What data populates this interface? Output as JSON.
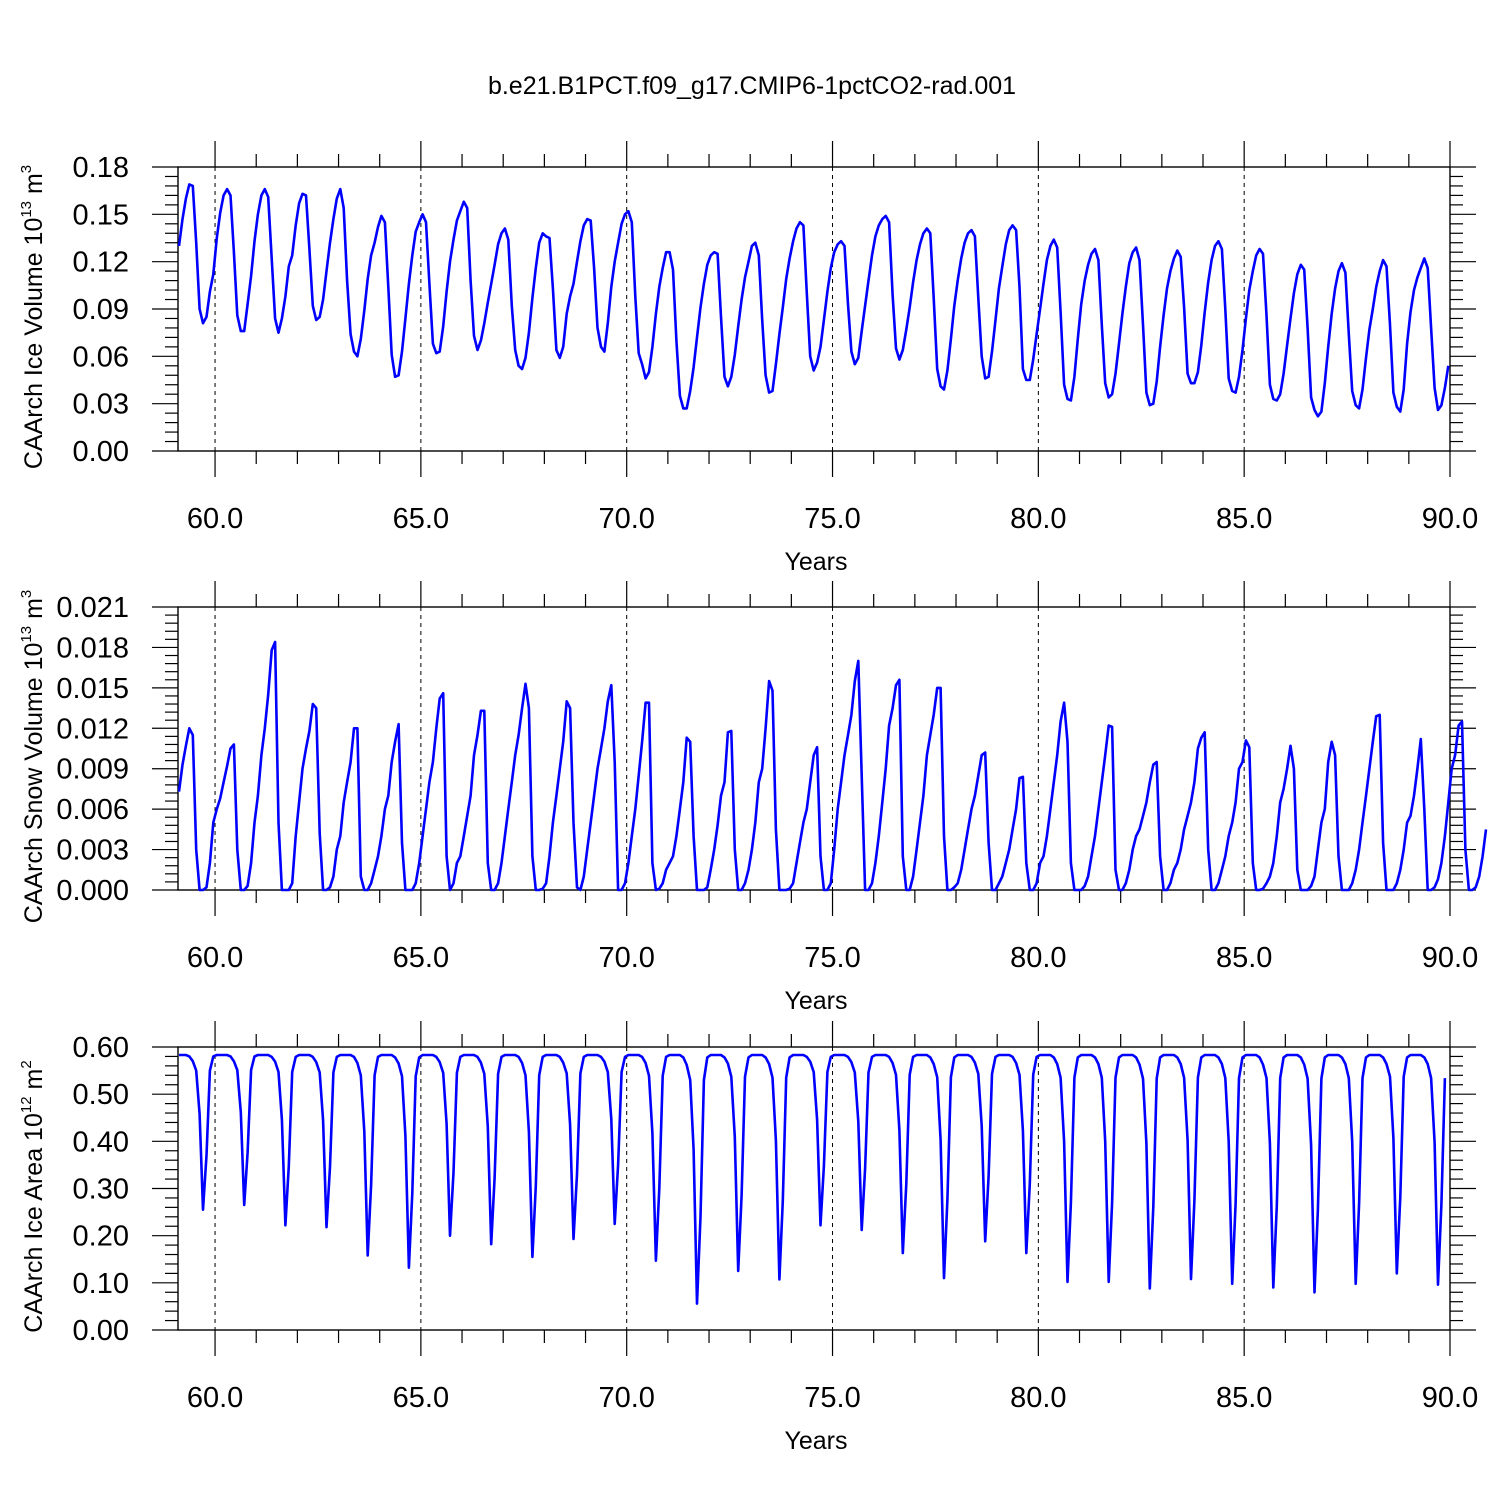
{
  "title": "b.e21.B1PCT.f09_g17.CMIP6-1pctCO2-rad.001",
  "colors": {
    "series": "#0000ff",
    "axes": "#000000"
  },
  "chart_data": [
    {
      "type": "line",
      "xlabel": "Years",
      "ylabel": {
        "main": "CAArch Ice Volume 10",
        "exp": "13",
        "unit": " m",
        "unit_exp": "3"
      },
      "xlim": [
        59.1,
        90.0
      ],
      "ylim": [
        0.0,
        0.18
      ],
      "xticks": [
        60,
        65,
        70,
        75,
        80,
        85,
        90
      ],
      "xtick_labels": [
        "60.0",
        "65.0",
        "70.0",
        "75.0",
        "80.0",
        "85.0",
        "90.0"
      ],
      "yticks": [
        0.0,
        0.03,
        0.06,
        0.09,
        0.12,
        0.15,
        0.18
      ],
      "ytick_labels": [
        "0.00",
        "0.03",
        "0.06",
        "0.09",
        "0.12",
        "0.15",
        "0.18"
      ],
      "grid": "vertical dashed at major x ticks",
      "x_start": 59.125,
      "x_step": 0.0833333,
      "values": [
        0.13,
        0.147,
        0.16,
        0.169,
        0.168,
        0.132,
        0.09,
        0.081,
        0.085,
        0.101,
        0.112,
        0.135,
        0.151,
        0.162,
        0.166,
        0.162,
        0.126,
        0.086,
        0.076,
        0.076,
        0.093,
        0.111,
        0.133,
        0.15,
        0.162,
        0.166,
        0.161,
        0.122,
        0.084,
        0.075,
        0.084,
        0.098,
        0.117,
        0.124,
        0.143,
        0.157,
        0.163,
        0.162,
        0.128,
        0.092,
        0.083,
        0.085,
        0.096,
        0.114,
        0.132,
        0.147,
        0.16,
        0.166,
        0.154,
        0.108,
        0.074,
        0.063,
        0.06,
        0.071,
        0.089,
        0.109,
        0.124,
        0.132,
        0.142,
        0.149,
        0.145,
        0.104,
        0.061,
        0.047,
        0.048,
        0.063,
        0.084,
        0.106,
        0.124,
        0.139,
        0.145,
        0.15,
        0.145,
        0.106,
        0.068,
        0.062,
        0.063,
        0.079,
        0.101,
        0.12,
        0.134,
        0.146,
        0.152,
        0.158,
        0.154,
        0.108,
        0.073,
        0.064,
        0.07,
        0.081,
        0.094,
        0.106,
        0.118,
        0.131,
        0.138,
        0.141,
        0.134,
        0.092,
        0.064,
        0.054,
        0.052,
        0.059,
        0.075,
        0.097,
        0.116,
        0.132,
        0.138,
        0.136,
        0.135,
        0.103,
        0.064,
        0.059,
        0.066,
        0.087,
        0.098,
        0.106,
        0.12,
        0.133,
        0.143,
        0.147,
        0.146,
        0.116,
        0.078,
        0.066,
        0.063,
        0.081,
        0.104,
        0.12,
        0.132,
        0.144,
        0.15,
        0.152,
        0.145,
        0.098,
        0.062,
        0.055,
        0.046,
        0.05,
        0.066,
        0.087,
        0.104,
        0.116,
        0.126,
        0.126,
        0.115,
        0.07,
        0.035,
        0.027,
        0.027,
        0.038,
        0.053,
        0.072,
        0.091,
        0.106,
        0.118,
        0.124,
        0.126,
        0.125,
        0.085,
        0.047,
        0.041,
        0.047,
        0.061,
        0.079,
        0.096,
        0.11,
        0.12,
        0.13,
        0.132,
        0.124,
        0.083,
        0.048,
        0.037,
        0.038,
        0.055,
        0.074,
        0.091,
        0.109,
        0.122,
        0.133,
        0.141,
        0.145,
        0.143,
        0.1,
        0.06,
        0.051,
        0.056,
        0.066,
        0.083,
        0.101,
        0.116,
        0.126,
        0.131,
        0.133,
        0.13,
        0.093,
        0.063,
        0.055,
        0.059,
        0.076,
        0.092,
        0.108,
        0.124,
        0.136,
        0.143,
        0.147,
        0.149,
        0.145,
        0.099,
        0.065,
        0.058,
        0.064,
        0.077,
        0.091,
        0.107,
        0.121,
        0.131,
        0.138,
        0.141,
        0.138,
        0.097,
        0.052,
        0.041,
        0.039,
        0.051,
        0.071,
        0.092,
        0.108,
        0.122,
        0.132,
        0.138,
        0.14,
        0.136,
        0.097,
        0.06,
        0.046,
        0.047,
        0.063,
        0.083,
        0.103,
        0.117,
        0.131,
        0.14,
        0.143,
        0.14,
        0.104,
        0.052,
        0.045,
        0.045,
        0.058,
        0.074,
        0.09,
        0.106,
        0.121,
        0.13,
        0.134,
        0.129,
        0.088,
        0.042,
        0.033,
        0.032,
        0.047,
        0.071,
        0.093,
        0.108,
        0.118,
        0.125,
        0.128,
        0.121,
        0.08,
        0.043,
        0.034,
        0.036,
        0.049,
        0.068,
        0.087,
        0.104,
        0.119,
        0.126,
        0.129,
        0.121,
        0.08,
        0.037,
        0.029,
        0.03,
        0.044,
        0.066,
        0.086,
        0.103,
        0.114,
        0.122,
        0.127,
        0.123,
        0.091,
        0.049,
        0.043,
        0.043,
        0.05,
        0.067,
        0.088,
        0.107,
        0.121,
        0.13,
        0.133,
        0.128,
        0.09,
        0.046,
        0.038,
        0.037,
        0.047,
        0.064,
        0.084,
        0.102,
        0.114,
        0.124,
        0.128,
        0.125,
        0.086,
        0.042,
        0.033,
        0.032,
        0.036,
        0.049,
        0.067,
        0.084,
        0.1,
        0.112,
        0.118,
        0.115,
        0.078,
        0.034,
        0.026,
        0.022,
        0.025,
        0.043,
        0.066,
        0.087,
        0.103,
        0.114,
        0.119,
        0.113,
        0.074,
        0.038,
        0.029,
        0.027,
        0.039,
        0.059,
        0.077,
        0.09,
        0.104,
        0.114,
        0.121,
        0.117,
        0.08,
        0.037,
        0.028,
        0.025,
        0.039,
        0.068,
        0.088,
        0.102,
        0.11,
        0.116,
        0.122,
        0.116,
        0.078,
        0.04,
        0.026,
        0.029,
        0.04,
        0.054
      ]
    },
    {
      "type": "line",
      "xlabel": "Years",
      "ylabel": {
        "main": "CAArch Snow Volume 10",
        "exp": "13",
        "unit": " m",
        "unit_exp": "3"
      },
      "xlim": [
        59.1,
        90.0
      ],
      "ylim": [
        0.0,
        0.021
      ],
      "xticks": [
        60,
        65,
        70,
        75,
        80,
        85,
        90
      ],
      "xtick_labels": [
        "60.0",
        "65.0",
        "70.0",
        "75.0",
        "80.0",
        "85.0",
        "90.0"
      ],
      "yticks": [
        0.0,
        0.003,
        0.006,
        0.009,
        0.012,
        0.015,
        0.018,
        0.021
      ],
      "ytick_labels": [
        "0.000",
        "0.003",
        "0.006",
        "0.009",
        "0.012",
        "0.015",
        "0.018",
        "0.021"
      ],
      "grid": "vertical dashed at major x ticks",
      "x_start": 59.125,
      "x_step": 0.0833333,
      "values": [
        0.0073,
        0.0093,
        0.0107,
        0.012,
        0.0115,
        0.003,
        0.0,
        0.0,
        0.0002,
        0.002,
        0.005,
        0.006,
        0.0068,
        0.008,
        0.0092,
        0.0105,
        0.0108,
        0.003,
        0.0,
        0.0,
        0.0003,
        0.002,
        0.005,
        0.007,
        0.01,
        0.012,
        0.0145,
        0.0178,
        0.0184,
        0.005,
        0.0,
        0.0,
        0.0,
        0.0005,
        0.004,
        0.0065,
        0.009,
        0.0105,
        0.0118,
        0.0138,
        0.0135,
        0.0042,
        0.0,
        0.0,
        0.0002,
        0.001,
        0.003,
        0.004,
        0.0065,
        0.008,
        0.0095,
        0.012,
        0.012,
        0.001,
        0.0,
        0.0,
        0.0005,
        0.0015,
        0.0025,
        0.004,
        0.006,
        0.007,
        0.0095,
        0.011,
        0.0123,
        0.0035,
        0.0,
        0.0,
        0.0,
        0.0005,
        0.002,
        0.004,
        0.006,
        0.008,
        0.0095,
        0.012,
        0.0142,
        0.0146,
        0.0025,
        0.0,
        0.0005,
        0.002,
        0.0025,
        0.004,
        0.0055,
        0.007,
        0.01,
        0.0115,
        0.0133,
        0.0133,
        0.002,
        0.0,
        0.0,
        0.0005,
        0.002,
        0.004,
        0.006,
        0.008,
        0.01,
        0.0115,
        0.0135,
        0.0153,
        0.0135,
        0.0025,
        0.0,
        0.0,
        0.0001,
        0.0005,
        0.0025,
        0.005,
        0.007,
        0.009,
        0.011,
        0.014,
        0.0135,
        0.005,
        0.0002,
        0.0,
        0.001,
        0.003,
        0.005,
        0.007,
        0.009,
        0.0105,
        0.012,
        0.014,
        0.0152,
        0.0095,
        0.0,
        0.0,
        0.0005,
        0.002,
        0.004,
        0.006,
        0.0085,
        0.011,
        0.0139,
        0.0139,
        0.002,
        0.0,
        0.0001,
        0.0005,
        0.0015,
        0.002,
        0.0025,
        0.004,
        0.006,
        0.008,
        0.0113,
        0.011,
        0.004,
        0.0,
        0.0,
        0.0,
        0.0002,
        0.0015,
        0.003,
        0.0048,
        0.007,
        0.008,
        0.0117,
        0.0118,
        0.003,
        0.0,
        0.0,
        0.0005,
        0.0015,
        0.003,
        0.005,
        0.008,
        0.009,
        0.012,
        0.0155,
        0.0148,
        0.0045,
        0.0,
        0.0,
        0.0,
        0.0001,
        0.0005,
        0.002,
        0.0035,
        0.005,
        0.006,
        0.008,
        0.01,
        0.0106,
        0.0025,
        0.0,
        0.0,
        0.0005,
        0.003,
        0.006,
        0.008,
        0.01,
        0.0115,
        0.013,
        0.0155,
        0.017,
        0.0085,
        0.0,
        0.0,
        0.0005,
        0.002,
        0.004,
        0.0065,
        0.009,
        0.0122,
        0.0135,
        0.0152,
        0.0156,
        0.0025,
        0.0,
        0.0,
        0.001,
        0.003,
        0.005,
        0.007,
        0.01,
        0.0115,
        0.013,
        0.015,
        0.015,
        0.004,
        0.0,
        0.0,
        0.0002,
        0.0005,
        0.0015,
        0.003,
        0.0045,
        0.006,
        0.007,
        0.0085,
        0.01,
        0.0102,
        0.0035,
        0.0,
        0.0,
        0.0005,
        0.001,
        0.002,
        0.003,
        0.0045,
        0.006,
        0.0083,
        0.0084,
        0.002,
        0.0,
        0.0,
        0.0005,
        0.002,
        0.0025,
        0.004,
        0.006,
        0.008,
        0.01,
        0.0125,
        0.0139,
        0.011,
        0.002,
        0.0,
        0.0,
        0.0,
        0.0003,
        0.001,
        0.0025,
        0.004,
        0.006,
        0.008,
        0.01,
        0.0122,
        0.0121,
        0.0015,
        0.0,
        0.0,
        0.0005,
        0.0015,
        0.003,
        0.004,
        0.0045,
        0.0055,
        0.0065,
        0.008,
        0.0093,
        0.0095,
        0.0025,
        0.0,
        0.0,
        0.0005,
        0.0015,
        0.002,
        0.003,
        0.0045,
        0.0055,
        0.0065,
        0.008,
        0.0105,
        0.0113,
        0.0117,
        0.003,
        0.0,
        0.0,
        0.0005,
        0.0015,
        0.0025,
        0.004,
        0.005,
        0.0065,
        0.009,
        0.0095,
        0.0111,
        0.0106,
        0.002,
        0.0,
        0.0,
        0.0001,
        0.0005,
        0.001,
        0.002,
        0.004,
        0.0065,
        0.0075,
        0.009,
        0.0107,
        0.009,
        0.0015,
        0.0,
        0.0,
        0.0,
        0.0003,
        0.001,
        0.003,
        0.005,
        0.006,
        0.0095,
        0.011,
        0.01,
        0.0025,
        0.0,
        0.0,
        0.0,
        0.0005,
        0.0015,
        0.003,
        0.005,
        0.007,
        0.009,
        0.011,
        0.0129,
        0.013,
        0.0035,
        0.0,
        0.0,
        0.0,
        0.0005,
        0.0015,
        0.003,
        0.005,
        0.0055,
        0.007,
        0.009,
        0.0112,
        0.006,
        0.0,
        0.0,
        0.0002,
        0.0008,
        0.002,
        0.004,
        0.0065,
        0.009,
        0.01,
        0.0122,
        0.0125,
        0.003,
        0.0,
        0.0,
        0.0002,
        0.001,
        0.0025,
        0.0045
      ]
    },
    {
      "type": "line",
      "xlabel": "Years",
      "ylabel": {
        "main": "CAArch Ice Area 10",
        "exp": "12",
        "unit": " m",
        "unit_exp": "2"
      },
      "xlim": [
        59.1,
        90.0
      ],
      "ylim": [
        0.0,
        0.6
      ],
      "xticks": [
        60,
        65,
        70,
        75,
        80,
        85,
        90
      ],
      "xtick_labels": [
        "60.0",
        "65.0",
        "70.0",
        "75.0",
        "80.0",
        "85.0",
        "90.0"
      ],
      "yticks": [
        0.0,
        0.1,
        0.2,
        0.3,
        0.4,
        0.5,
        0.6
      ],
      "ytick_labels": [
        "0.00",
        "0.10",
        "0.20",
        "0.30",
        "0.40",
        "0.50",
        "0.60"
      ],
      "grid": "vertical dashed at major x ticks",
      "x_start": 59.125,
      "x_step": 0.0833333,
      "max_value": 0.583,
      "summer_minima": [
        0.255,
        0.265,
        0.222,
        0.218,
        0.158,
        0.132,
        0.2,
        0.182,
        0.155,
        0.193,
        0.225,
        0.147,
        0.056,
        0.125,
        0.107,
        0.222,
        0.212,
        0.163,
        0.11,
        0.188,
        0.163,
        0.102,
        0.102,
        0.088,
        0.108,
        0.098,
        0.09,
        0.08,
        0.098,
        0.12,
        0.096
      ],
      "annual_cycle": [
        1.0,
        1.0,
        1.0,
        0.99,
        0.96,
        0.9,
        0.62,
        0.0,
        0.35,
        0.9,
        0.99,
        1.0
      ]
    }
  ]
}
